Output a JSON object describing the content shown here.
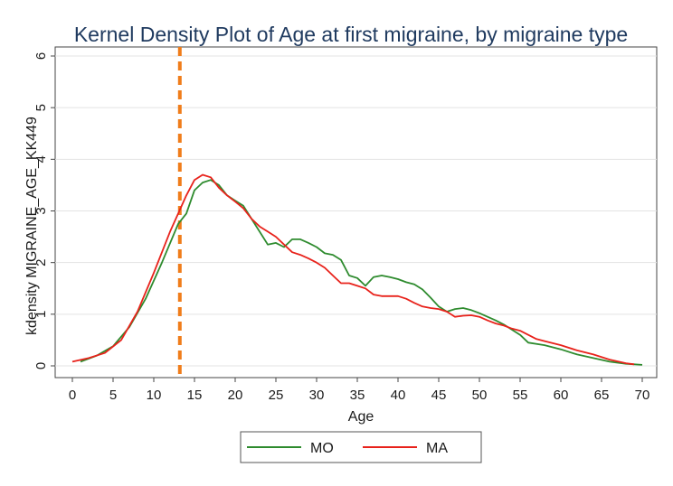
{
  "chart_data": {
    "type": "line",
    "title": "Kernel Density Plot of Age at first migraine, by migraine type",
    "xlabel": "Age",
    "ylabel": "kdensity MIGRAINE_AGE_KK449",
    "xlim": [
      0,
      70
    ],
    "ylim": [
      0,
      6
    ],
    "x_ticks": [
      0,
      5,
      10,
      15,
      20,
      25,
      30,
      35,
      40,
      45,
      50,
      55,
      60,
      65,
      70
    ],
    "y_ticks": [
      0,
      1,
      2,
      3,
      4,
      5,
      6
    ],
    "y_scale_note": "values shown x100 (tick labels truncated)",
    "grid": true,
    "legend_position": "bottom-center",
    "reference_line": {
      "x": 13.2,
      "color": "#f07d1a",
      "style": "dashed"
    },
    "series": [
      {
        "name": "MO",
        "color": "#2e8b2e",
        "points": [
          [
            1,
            0.08
          ],
          [
            3,
            0.2
          ],
          [
            5,
            0.38
          ],
          [
            7,
            0.75
          ],
          [
            9,
            1.3
          ],
          [
            11,
            2.0
          ],
          [
            13,
            2.75
          ],
          [
            14,
            2.95
          ],
          [
            15,
            3.4
          ],
          [
            16,
            3.55
          ],
          [
            17,
            3.6
          ],
          [
            18,
            3.5
          ],
          [
            19,
            3.3
          ],
          [
            20,
            3.2
          ],
          [
            21,
            3.1
          ],
          [
            22,
            2.85
          ],
          [
            23,
            2.6
          ],
          [
            24,
            2.35
          ],
          [
            25,
            2.38
          ],
          [
            26,
            2.3
          ],
          [
            27,
            2.45
          ],
          [
            28,
            2.45
          ],
          [
            29,
            2.38
          ],
          [
            30,
            2.3
          ],
          [
            31,
            2.18
          ],
          [
            32,
            2.15
          ],
          [
            33,
            2.05
          ],
          [
            34,
            1.75
          ],
          [
            35,
            1.7
          ],
          [
            36,
            1.55
          ],
          [
            37,
            1.72
          ],
          [
            38,
            1.75
          ],
          [
            39,
            1.72
          ],
          [
            40,
            1.68
          ],
          [
            41,
            1.62
          ],
          [
            42,
            1.58
          ],
          [
            43,
            1.48
          ],
          [
            44,
            1.32
          ],
          [
            45,
            1.15
          ],
          [
            46,
            1.05
          ],
          [
            47,
            1.1
          ],
          [
            48,
            1.12
          ],
          [
            49,
            1.08
          ],
          [
            50,
            1.02
          ],
          [
            51,
            0.95
          ],
          [
            52,
            0.88
          ],
          [
            53,
            0.8
          ],
          [
            54,
            0.7
          ],
          [
            55,
            0.6
          ],
          [
            56,
            0.45
          ],
          [
            58,
            0.4
          ],
          [
            60,
            0.32
          ],
          [
            62,
            0.22
          ],
          [
            64,
            0.15
          ],
          [
            66,
            0.08
          ],
          [
            68,
            0.04
          ],
          [
            70,
            0.02
          ]
        ]
      },
      {
        "name": "MA",
        "color": "#e8221b",
        "points": [
          [
            0,
            0.08
          ],
          [
            2,
            0.15
          ],
          [
            4,
            0.25
          ],
          [
            6,
            0.5
          ],
          [
            8,
            1.05
          ],
          [
            10,
            1.8
          ],
          [
            12,
            2.6
          ],
          [
            13,
            2.95
          ],
          [
            14,
            3.3
          ],
          [
            15,
            3.6
          ],
          [
            16,
            3.7
          ],
          [
            17,
            3.65
          ],
          [
            18,
            3.45
          ],
          [
            19,
            3.3
          ],
          [
            20,
            3.18
          ],
          [
            21,
            3.05
          ],
          [
            22,
            2.85
          ],
          [
            23,
            2.7
          ],
          [
            24,
            2.6
          ],
          [
            25,
            2.5
          ],
          [
            26,
            2.35
          ],
          [
            27,
            2.2
          ],
          [
            28,
            2.15
          ],
          [
            29,
            2.08
          ],
          [
            30,
            2.0
          ],
          [
            31,
            1.9
          ],
          [
            32,
            1.75
          ],
          [
            33,
            1.6
          ],
          [
            34,
            1.6
          ],
          [
            35,
            1.55
          ],
          [
            36,
            1.5
          ],
          [
            37,
            1.38
          ],
          [
            38,
            1.35
          ],
          [
            39,
            1.35
          ],
          [
            40,
            1.35
          ],
          [
            41,
            1.3
          ],
          [
            42,
            1.22
          ],
          [
            43,
            1.15
          ],
          [
            44,
            1.12
          ],
          [
            45,
            1.1
          ],
          [
            46,
            1.05
          ],
          [
            47,
            0.95
          ],
          [
            48,
            0.97
          ],
          [
            49,
            0.98
          ],
          [
            50,
            0.95
          ],
          [
            51,
            0.88
          ],
          [
            52,
            0.82
          ],
          [
            53,
            0.78
          ],
          [
            54,
            0.72
          ],
          [
            55,
            0.68
          ],
          [
            56,
            0.6
          ],
          [
            57,
            0.52
          ],
          [
            58,
            0.48
          ],
          [
            60,
            0.4
          ],
          [
            62,
            0.3
          ],
          [
            64,
            0.22
          ],
          [
            66,
            0.12
          ],
          [
            68,
            0.05
          ],
          [
            69,
            0.03
          ]
        ]
      }
    ]
  }
}
